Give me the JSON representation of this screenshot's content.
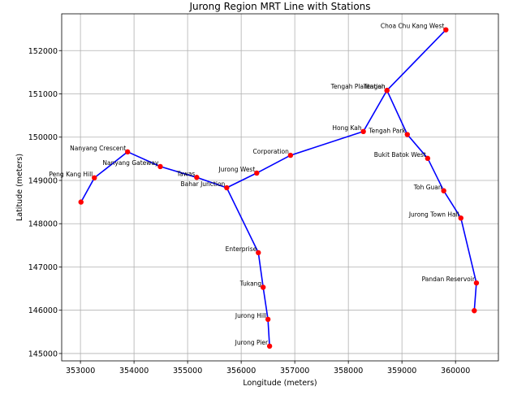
{
  "chart_data": {
    "type": "line",
    "title": "Jurong Region MRT Line with Stations",
    "xlabel": "Longitude (meters)",
    "ylabel": "Latitude (meters)",
    "xlim": [
      352650,
      360800
    ],
    "ylim": [
      144830,
      152850
    ],
    "xticks": [
      353000,
      354000,
      355000,
      356000,
      357000,
      358000,
      359000,
      360000
    ],
    "yticks": [
      145000,
      146000,
      147000,
      148000,
      149000,
      150000,
      151000,
      152000
    ],
    "grid": true,
    "line_color": "#0000ff",
    "marker_color": "#ff0000",
    "stations": [
      {
        "name": "Choa Chu Kang West",
        "x": 359820,
        "y": 152480
      },
      {
        "name": "Tengah Plantation",
        "x": 358720,
        "y": 151080
      },
      {
        "name": "Tengah",
        "x": 358720,
        "y": 151080
      },
      {
        "name": "Hong Kah",
        "x": 358280,
        "y": 150130
      },
      {
        "name": "Corporation",
        "x": 356920,
        "y": 149580
      },
      {
        "name": "Jurong West",
        "x": 356290,
        "y": 149170
      },
      {
        "name": "Bahar Junction",
        "x": 355730,
        "y": 148830
      },
      {
        "name": "Tawas",
        "x": 355170,
        "y": 149070
      },
      {
        "name": "Nanyang Gateway",
        "x": 354490,
        "y": 149320
      },
      {
        "name": "Nanyang Crescent",
        "x": 353880,
        "y": 149660
      },
      {
        "name": "Peng Kang Hill",
        "x": 353260,
        "y": 149060
      },
      {
        "name": "",
        "x": 353010,
        "y": 148500
      },
      {
        "name": "Tengah Park",
        "x": 359100,
        "y": 150060
      },
      {
        "name": "Bukit Batok West",
        "x": 359480,
        "y": 149510
      },
      {
        "name": "Toh Guan",
        "x": 359780,
        "y": 148760
      },
      {
        "name": "Jurong Town Hall",
        "x": 360100,
        "y": 148130
      },
      {
        "name": "Pandan Reservoir",
        "x": 360390,
        "y": 146630
      },
      {
        "name": "",
        "x": 360350,
        "y": 145990
      },
      {
        "name": "Enterprise",
        "x": 356320,
        "y": 147330
      },
      {
        "name": "Tukang",
        "x": 356410,
        "y": 146530
      },
      {
        "name": "Jurong Hill",
        "x": 356500,
        "y": 145790
      },
      {
        "name": "Jurong Pier",
        "x": 356530,
        "y": 145170
      }
    ],
    "lines": [
      [
        "Choa Chu Kang West",
        "Tengah",
        "Hong Kah",
        "Corporation",
        "Jurong West",
        "Bahar Junction",
        "Tawas",
        "Nanyang Gateway",
        "Nanyang Crescent",
        "Peng Kang Hill",
        11
      ],
      [
        "Tengah",
        "Tengah Park",
        "Bukit Batok West",
        "Toh Guan",
        "Jurong Town Hall",
        "Pandan Reservoir",
        17
      ],
      [
        "Bahar Junction",
        "Enterprise",
        "Tukang",
        "Jurong Hill",
        "Jurong Pier"
      ]
    ]
  }
}
